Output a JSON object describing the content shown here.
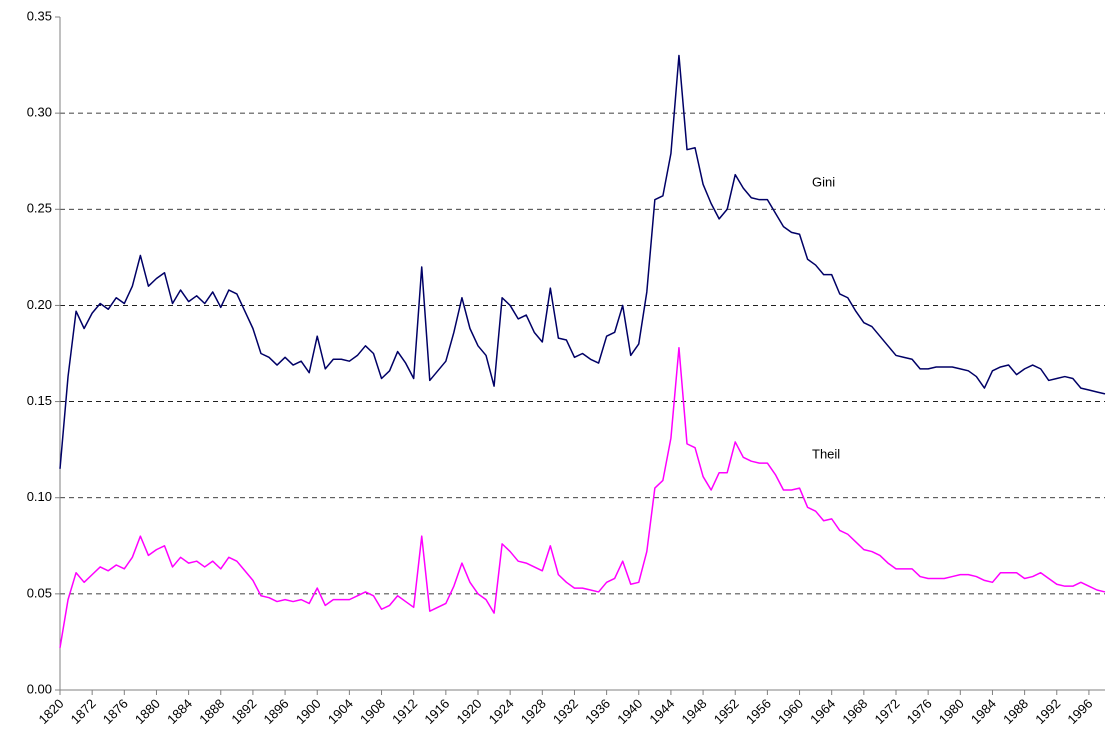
{
  "chart_data": {
    "type": "line",
    "categories": [
      "1820",
      null,
      null,
      null,
      "1872",
      null,
      null,
      null,
      "1876",
      null,
      null,
      null,
      "1880",
      null,
      null,
      null,
      "1884",
      null,
      null,
      null,
      "1888",
      null,
      null,
      null,
      "1892",
      null,
      null,
      null,
      "1896",
      null,
      null,
      null,
      "1900",
      null,
      null,
      null,
      "1904",
      null,
      null,
      null,
      "1908",
      null,
      null,
      null,
      "1912",
      null,
      null,
      null,
      "1916",
      null,
      null,
      null,
      "1920",
      null,
      null,
      null,
      "1924",
      null,
      null,
      null,
      "1928",
      null,
      null,
      null,
      "1932",
      null,
      null,
      null,
      "1936",
      null,
      null,
      null,
      "1940",
      null,
      null,
      null,
      "1944",
      null,
      null,
      null,
      "1948",
      null,
      null,
      null,
      "1952",
      null,
      null,
      null,
      "1956",
      null,
      null,
      null,
      "1960",
      null,
      null,
      null,
      "1964",
      null,
      null,
      null,
      "1968",
      null,
      null,
      null,
      "1972",
      null,
      null,
      null,
      "1976",
      null,
      null,
      null,
      "1980",
      null,
      null,
      null,
      "1984",
      null,
      null,
      null,
      "1988",
      null,
      null,
      null,
      "1992",
      null,
      null,
      null,
      "1996",
      null,
      null
    ],
    "series": [
      {
        "name": "Gini",
        "color": "#000066",
        "values": [
          0.115,
          0.163,
          0.197,
          0.188,
          0.196,
          0.201,
          0.198,
          0.204,
          0.201,
          0.21,
          0.226,
          0.21,
          0.214,
          0.217,
          0.201,
          0.208,
          0.202,
          0.205,
          0.201,
          0.207,
          0.199,
          0.208,
          0.206,
          0.197,
          0.188,
          0.175,
          0.173,
          0.169,
          0.173,
          0.169,
          0.171,
          0.165,
          0.184,
          0.167,
          0.172,
          0.172,
          0.171,
          0.174,
          0.179,
          0.175,
          0.162,
          0.166,
          0.176,
          0.17,
          0.162,
          0.22,
          0.161,
          0.166,
          0.171,
          0.186,
          0.204,
          0.188,
          0.179,
          0.174,
          0.158,
          0.204,
          0.2,
          0.193,
          0.195,
          0.186,
          0.181,
          0.209,
          0.183,
          0.182,
          0.173,
          0.175,
          0.172,
          0.17,
          0.184,
          0.186,
          0.2,
          0.174,
          0.18,
          0.207,
          0.255,
          0.257,
          0.279,
          0.33,
          0.281,
          0.282,
          0.263,
          0.253,
          0.245,
          0.25,
          0.268,
          0.261,
          0.256,
          0.255,
          0.255,
          0.248,
          0.241,
          0.238,
          0.237,
          0.224,
          0.221,
          0.216,
          0.216,
          0.206,
          0.204,
          0.197,
          0.191,
          0.189,
          0.184,
          0.179,
          0.174,
          0.173,
          0.172,
          0.167,
          0.167,
          0.168,
          0.168,
          0.168,
          0.167,
          0.166,
          0.163,
          0.157,
          0.166,
          0.168,
          0.169,
          0.164,
          0.167,
          0.169,
          0.167,
          0.161,
          0.162,
          0.163,
          0.162,
          0.157,
          0.156,
          0.155,
          0.154
        ]
      },
      {
        "name": "Theil",
        "color": "#ff00ff",
        "values": [
          0.022,
          0.047,
          0.061,
          0.056,
          0.06,
          0.064,
          0.062,
          0.065,
          0.063,
          0.069,
          0.08,
          0.07,
          0.073,
          0.075,
          0.064,
          0.069,
          0.066,
          0.067,
          0.064,
          0.067,
          0.063,
          0.069,
          0.067,
          0.062,
          0.057,
          0.049,
          0.048,
          0.046,
          0.047,
          0.046,
          0.047,
          0.045,
          0.053,
          0.044,
          0.047,
          0.047,
          0.047,
          0.049,
          0.051,
          0.049,
          0.042,
          0.044,
          0.049,
          0.046,
          0.043,
          0.08,
          0.041,
          0.043,
          0.045,
          0.054,
          0.066,
          0.056,
          0.05,
          0.047,
          0.04,
          0.076,
          0.072,
          0.067,
          0.066,
          0.064,
          0.062,
          0.075,
          0.06,
          0.056,
          0.053,
          0.053,
          0.052,
          0.051,
          0.056,
          0.058,
          0.067,
          0.055,
          0.056,
          0.072,
          0.105,
          0.109,
          0.131,
          0.178,
          0.128,
          0.126,
          0.111,
          0.104,
          0.113,
          0.113,
          0.129,
          0.121,
          0.119,
          0.118,
          0.118,
          0.112,
          0.104,
          0.104,
          0.105,
          0.095,
          0.093,
          0.088,
          0.089,
          0.083,
          0.081,
          0.077,
          0.073,
          0.072,
          0.07,
          0.066,
          0.063,
          0.063,
          0.063,
          0.059,
          0.058,
          0.058,
          0.058,
          0.059,
          0.06,
          0.06,
          0.059,
          0.057,
          0.056,
          0.061,
          0.061,
          0.061,
          0.058,
          0.059,
          0.061,
          0.058,
          0.055,
          0.054,
          0.054,
          0.056,
          0.054,
          0.052,
          0.051
        ]
      }
    ],
    "ylim": [
      0,
      0.35
    ],
    "yticks": [
      {
        "value": 0,
        "label": "0.00"
      },
      {
        "value": 0.05,
        "label": "0.05"
      },
      {
        "value": 0.1,
        "label": "0.10"
      },
      {
        "value": 0.15,
        "label": "0.15"
      },
      {
        "value": 0.2,
        "label": "0.20"
      },
      {
        "value": 0.25,
        "label": "0.25"
      },
      {
        "value": 0.3,
        "label": "0.30"
      },
      {
        "value": 0.35,
        "label": "0.35"
      }
    ],
    "grid": true
  }
}
